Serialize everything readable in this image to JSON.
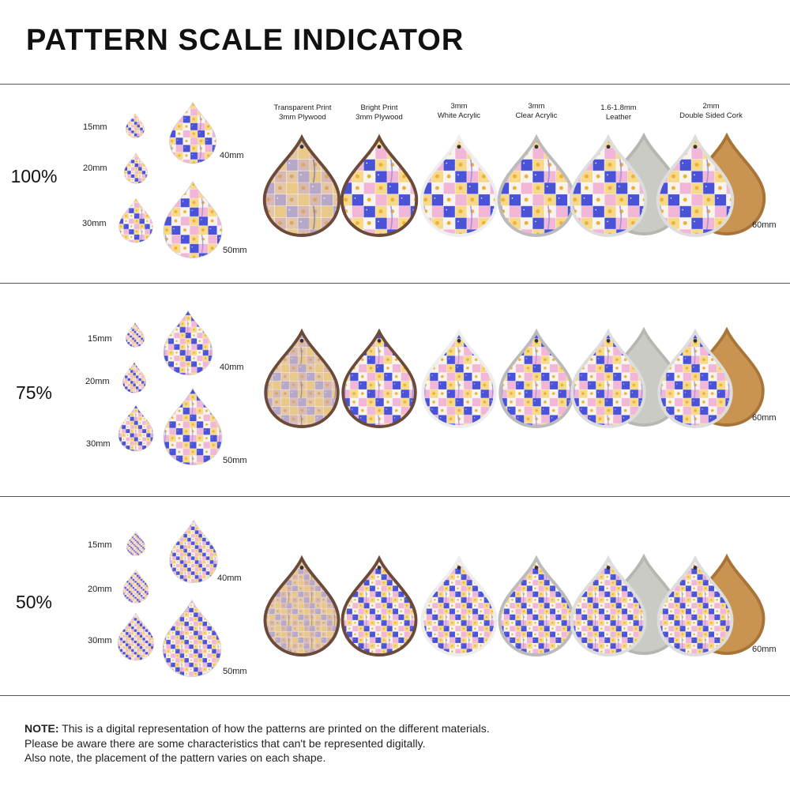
{
  "title": "PATTERN SCALE INDICATOR",
  "materials": [
    {
      "line1": "Transparent Print",
      "line2": "3mm Plywood"
    },
    {
      "line1": "Bright Print",
      "line2": "3mm Plywood"
    },
    {
      "line1": "3mm",
      "line2": "White Acrylic"
    },
    {
      "line1": "3mm",
      "line2": "Clear Acrylic"
    },
    {
      "line1": "1.6-1.8mm",
      "line2": "Leather"
    },
    {
      "line1": "2mm",
      "line2": "Double Sided Cork"
    }
  ],
  "sections": [
    {
      "percent": "100%",
      "scale": 1,
      "sizes": [
        "15mm",
        "20mm",
        "30mm",
        "40mm",
        "50mm"
      ],
      "large_size": "60mm"
    },
    {
      "percent": "75%",
      "scale": 0.75,
      "sizes": [
        "15mm",
        "20mm",
        "30mm",
        "40mm",
        "50mm"
      ],
      "large_size": "60mm"
    },
    {
      "percent": "50%",
      "scale": 0.5,
      "sizes": [
        "15mm",
        "20mm",
        "30mm",
        "40mm",
        "50mm"
      ],
      "large_size": "60mm"
    }
  ],
  "note": {
    "label": "NOTE:",
    "line1": "This is a digital representation of how the patterns are printed on the different materials.",
    "line2": "Please be aware there are some characteristics that can't be represented digitally.",
    "line3": "Also note, the placement of the pattern varies on each shape."
  },
  "colors": {
    "blue": "#4a52d8",
    "pink": "#f2b6d6",
    "yellow": "#f6d98a",
    "white": "#f7f4f0",
    "lavender": "#9b8fe0",
    "leather": "#c9cbc4",
    "cork": "#c99452",
    "wood": "#d9b58a"
  }
}
